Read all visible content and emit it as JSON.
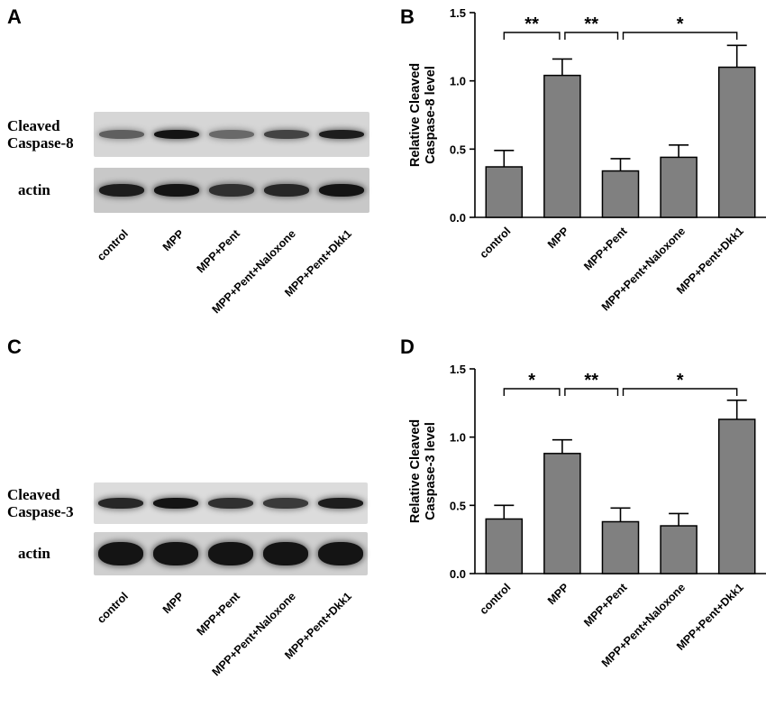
{
  "panels": {
    "a": "A",
    "b": "B",
    "c": "C",
    "d": "D"
  },
  "blot_a": {
    "target_label": [
      "Cleaved",
      "Caspase-8"
    ],
    "actin_label": "actin",
    "target_band_intensity": [
      0.55,
      0.95,
      0.5,
      0.7,
      0.9
    ],
    "actin_band_intensity": [
      0.9,
      0.95,
      0.8,
      0.85,
      0.95
    ],
    "lanes": [
      "control",
      "MPP",
      "MPP+Pent",
      "MPP+Pent+Naloxone",
      "MPP+Pent+Dkk1"
    ]
  },
  "blot_c": {
    "target_label": [
      "Cleaved",
      "Caspase-3"
    ],
    "actin_label": "actin",
    "target_band_intensity": [
      0.85,
      0.95,
      0.8,
      0.75,
      0.9
    ],
    "actin_band_intensity": [
      0.95,
      0.95,
      0.95,
      0.95,
      0.95
    ],
    "lanes": [
      "control",
      "MPP",
      "MPP+Pent",
      "MPP+Pent+Naloxone",
      "MPP+Pent+Dkk1"
    ]
  },
  "chart_data": [
    {
      "type": "bar",
      "panel": "B",
      "ylabel": [
        "Relative Cleaved",
        "Caspase-8 level"
      ],
      "categories": [
        "control",
        "MPP",
        "MPP+Pent",
        "MPP+Pent+Naloxone",
        "MPP+Pent+Dkk1"
      ],
      "values": [
        0.37,
        1.04,
        0.34,
        0.44,
        1.1
      ],
      "errors": [
        0.12,
        0.12,
        0.09,
        0.09,
        0.16
      ],
      "ylim": [
        0,
        1.5
      ],
      "yticks": [
        "0.0",
        "0.5",
        "1.0",
        "1.5"
      ],
      "significance": [
        {
          "from": 0,
          "to": 1,
          "label": "**"
        },
        {
          "from": 1,
          "to": 2,
          "label": "**"
        },
        {
          "from": 2,
          "to": 4,
          "label": "*"
        }
      ],
      "bar_color": "#808080"
    },
    {
      "type": "bar",
      "panel": "D",
      "ylabel": [
        "Relative Cleaved",
        "Caspase-3 level"
      ],
      "categories": [
        "control",
        "MPP",
        "MPP+Pent",
        "MPP+Pent+Naloxone",
        "MPP+Pent+Dkk1"
      ],
      "values": [
        0.4,
        0.88,
        0.38,
        0.35,
        1.13
      ],
      "errors": [
        0.1,
        0.1,
        0.1,
        0.09,
        0.14
      ],
      "ylim": [
        0,
        1.5
      ],
      "yticks": [
        "0.0",
        "0.5",
        "1.0",
        "1.5"
      ],
      "significance": [
        {
          "from": 0,
          "to": 1,
          "label": "*"
        },
        {
          "from": 1,
          "to": 2,
          "label": "**"
        },
        {
          "from": 2,
          "to": 4,
          "label": "*"
        }
      ],
      "bar_color": "#808080"
    }
  ]
}
